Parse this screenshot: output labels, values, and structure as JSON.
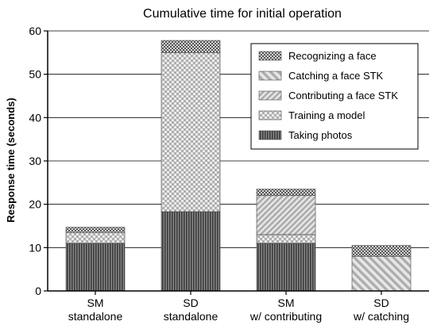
{
  "chart_data": {
    "type": "bar",
    "stacked": true,
    "title": "Cumulative time for initial operation",
    "xlabel": "",
    "ylabel": "Response time (seconds)",
    "ylim": [
      0,
      60
    ],
    "yticks": [
      0,
      10,
      20,
      30,
      40,
      50,
      60
    ],
    "grid": true,
    "legend_position": "top-right",
    "categories": [
      [
        "SM",
        "standalone"
      ],
      [
        "SD",
        "standalone"
      ],
      [
        "SM",
        "w/ contributing"
      ],
      [
        "SD",
        "w/ catching"
      ]
    ],
    "series": [
      {
        "name": "Taking photos",
        "pattern": "vertical",
        "color": "#555555",
        "values": [
          11.0,
          18.3,
          11.0,
          0
        ]
      },
      {
        "name": "Training a model",
        "pattern": "dots",
        "color": "#b0b0b0",
        "values": [
          2.5,
          36.7,
          2.0,
          0
        ]
      },
      {
        "name": "Contributing a face STK",
        "pattern": "diag-dense",
        "color": "#c2c2c2",
        "values": [
          0,
          0,
          9.0,
          0
        ]
      },
      {
        "name": "Catching a face STK",
        "pattern": "diag-wide",
        "color": "#c2c2c2",
        "values": [
          0,
          0,
          0,
          8.0
        ]
      },
      {
        "name": "Recognizing a face",
        "pattern": "checker",
        "color": "#777777",
        "values": [
          1.2,
          2.8,
          1.5,
          2.5
        ]
      }
    ]
  }
}
